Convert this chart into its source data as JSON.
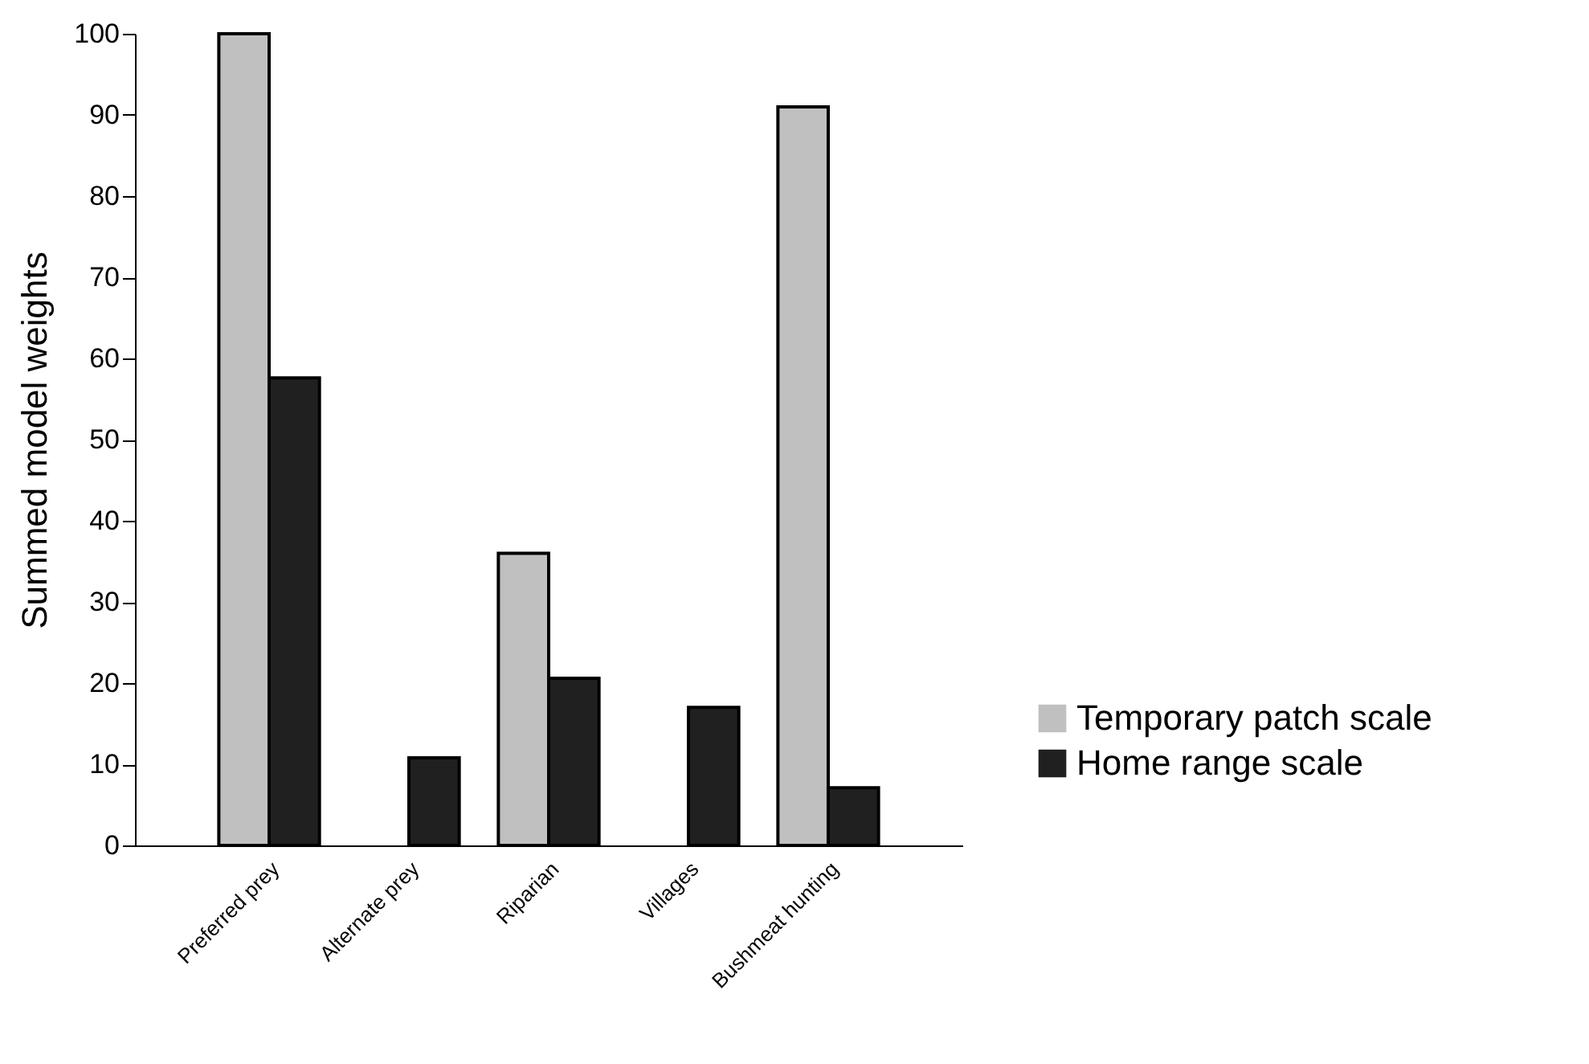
{
  "chart_data": {
    "type": "bar",
    "ylabel": "Summed model weights",
    "categories": [
      "Preferred prey",
      "Alternate prey",
      "Riparian",
      "Villages",
      "Bushmeat hunting"
    ],
    "series": [
      {
        "name": "Temporary patch scale",
        "color": "#c0c0c0",
        "values": [
          100,
          0,
          36,
          0,
          91
        ]
      },
      {
        "name": "Home range scale",
        "color": "#202020",
        "values": [
          57.6,
          10.8,
          20.6,
          17,
          7.1
        ]
      }
    ],
    "ylim": [
      0,
      100
    ],
    "yticks": [
      0,
      10,
      20,
      30,
      40,
      50,
      60,
      70,
      80,
      90,
      100
    ],
    "grid": false,
    "legend": "bottom right"
  }
}
